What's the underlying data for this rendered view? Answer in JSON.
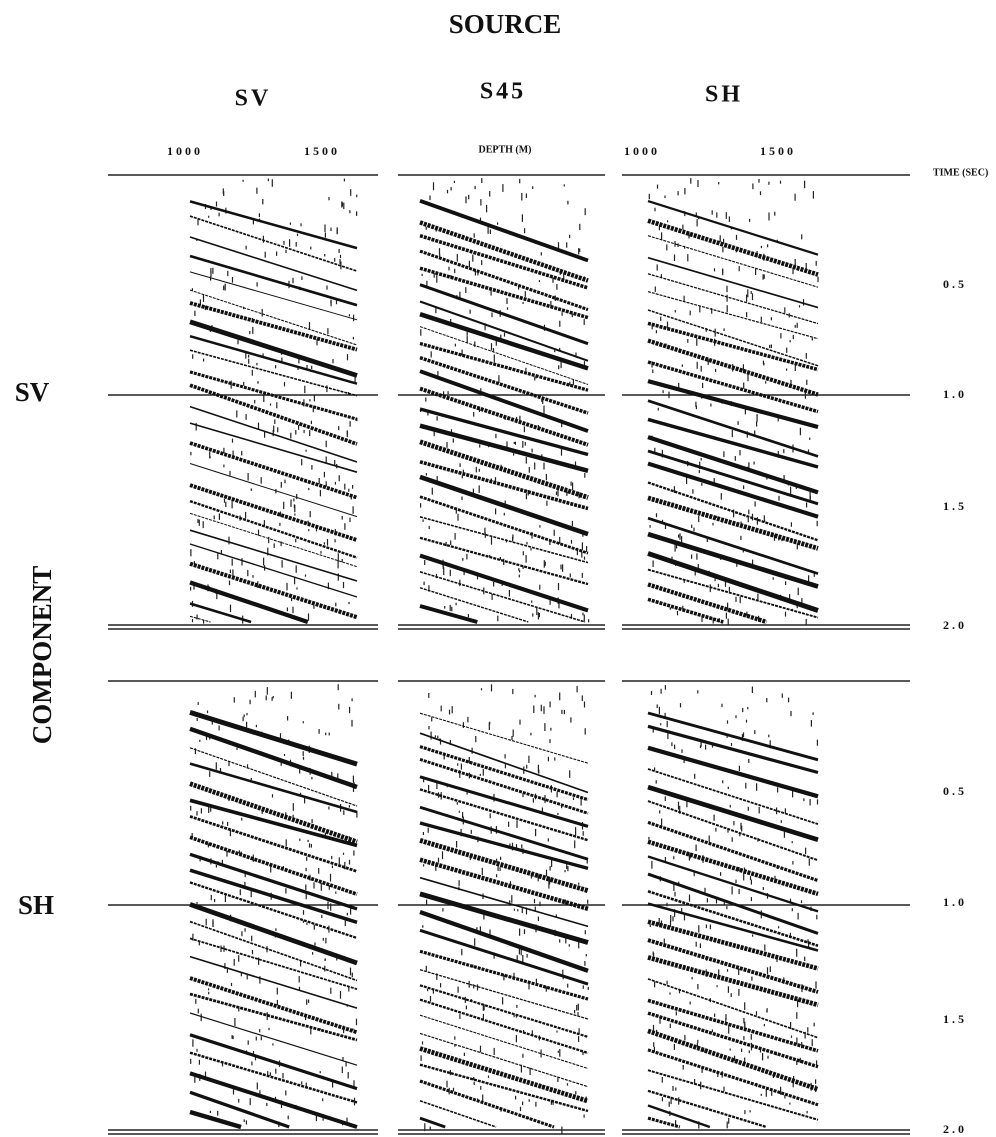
{
  "header": {
    "title": "SOURCE"
  },
  "source_columns": [
    "SV",
    "S45",
    "SH"
  ],
  "depth_axis": {
    "left_ticks": [
      "1000",
      "1500"
    ],
    "label": "DEPTH (M)",
    "right_ticks": [
      "1000",
      "1500"
    ]
  },
  "time_axis": {
    "label": "TIME (SEC)",
    "top_ticks": [
      "0.5",
      "1.0",
      "1.5",
      "2.0"
    ],
    "bottom_ticks": [
      "0.5",
      "1.0",
      "1.5",
      "2.0"
    ]
  },
  "component_axis": {
    "label": "COMPONENT",
    "rows": [
      "SV",
      "SH"
    ]
  }
}
